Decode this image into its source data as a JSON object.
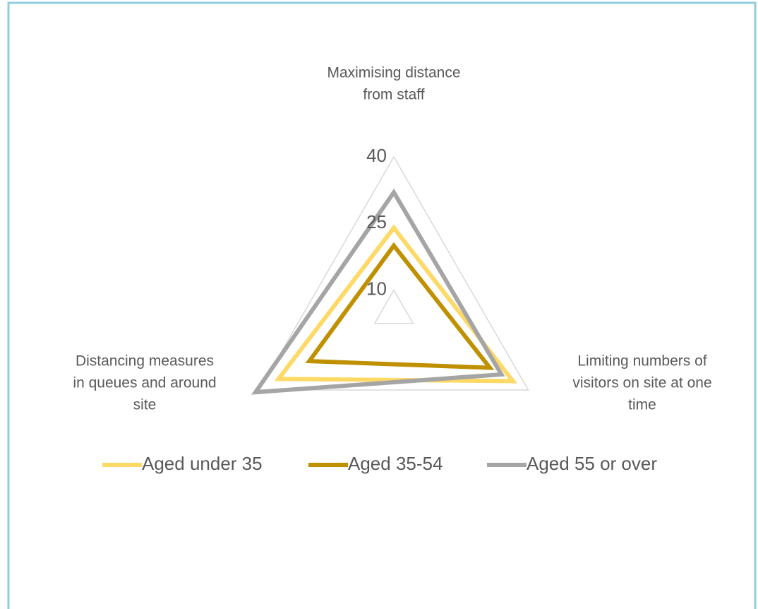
{
  "chart_data": {
    "type": "radar",
    "categories": [
      [
        "Maximising distance",
        "from staff"
      ],
      [
        "Limiting numbers of",
        "visitors on site at one",
        "time"
      ],
      [
        "Distancing measures",
        "in queues and around",
        "site"
      ]
    ],
    "series": [
      {
        "name": "Aged under 35",
        "color": "#ffd966",
        "values": [
          24,
          36,
          35
        ]
      },
      {
        "name": "Aged 35-54",
        "color": "#bf9000",
        "values": [
          20,
          30,
          27
        ]
      },
      {
        "name": "Aged 55 or over",
        "color": "#a5a5a5",
        "values": [
          32,
          33,
          41
        ]
      }
    ],
    "ylim": [
      5,
      40
    ],
    "yticks": [
      10,
      25,
      40
    ],
    "grid": true,
    "legend": "bottom"
  }
}
